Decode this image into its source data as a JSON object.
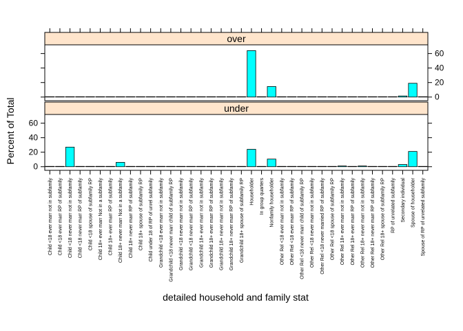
{
  "chart_data": {
    "type": "bar",
    "xlabel": "detailed household and family stat",
    "ylabel": "Percent of Total",
    "ylim": [
      -5,
      72
    ],
    "yticks": [
      0,
      20,
      40,
      60
    ],
    "colors": {
      "bar_fill": "#00ffff",
      "strip_fill": "#ffe5cc",
      "stroke": "#000000"
    },
    "categories": [
      "Child <18 ever marr not in subfamily",
      "Child <18 ever marr RP of subfamily",
      "Child <18 never marr not in subfamily",
      "Child <18 never marr RP of subfamily",
      "Child <18 spouse of subfamily RP",
      "Child 18+ ever marr Not in a subfamily",
      "Child 18+ ever marr RP of subfamily",
      "Child 18+ never marr Not in a subfamily",
      "Child 18+ never marr RP of subfamily",
      "Child 18+ spouse of subfamily RP",
      "Child under 18 of RP of unrel subfamily",
      "Grandchild <18 ever marr not in subfamily",
      "Grandchild <18 never marr child of subfamily RP",
      "Grandchild <18 never marr not in subfamily",
      "Grandchild <18 never marr RP of subfamily",
      "Grandchild 18+ ever marr not in subfamily",
      "Grandchild 18+ ever marr RP of subfamily",
      "Grandchild 18+ never marr not in subfamily",
      "Grandchild 18+ never marr RP of subfamily",
      "Grandchild 18+ spouse of subfamily RP",
      "Householder",
      "In group quarters",
      "Nonfamily householder",
      "Other Rel <18 ever marr not in subfamily",
      "Other Rel <18 ever marr RP of subfamily",
      "Other Rel <18 never marr child of subfamily RP",
      "Other Rel <18 never marr not in subfamily",
      "Other Rel <18 never married RP of subfamily",
      "Other Rel <18 spouse of subfamily RP",
      "Other Rel 18+ ever marr not in subfamily",
      "Other Rel 18+ ever marr RP of subfamily",
      "Other Rel 18+ never marr not in subfamily",
      "Other Rel 18+ never marr RP of subfamily",
      "Other Rel 18+ spouse of subfamily RP",
      "RP of unrelated subfamily",
      "Secondary individual",
      "Spouse of householder",
      "Spouse of RP of unrelated subfamily"
    ],
    "panels": [
      {
        "name": "over",
        "values": [
          0,
          0,
          0.1,
          0,
          0,
          0.1,
          0,
          0.3,
          0,
          0,
          0,
          0,
          0,
          0,
          0,
          0,
          0,
          0,
          0,
          0,
          64,
          0,
          14.5,
          0,
          0,
          0,
          0,
          0,
          0,
          0.1,
          0,
          0.1,
          0,
          0,
          0.1,
          1.5,
          19,
          0
        ]
      },
      {
        "name": "under",
        "values": [
          0,
          0,
          27,
          0,
          0,
          0.5,
          0,
          6,
          0,
          0,
          0,
          0.5,
          0.3,
          0,
          0,
          0,
          0,
          0,
          0,
          0,
          24,
          0,
          10.5,
          0,
          0,
          0,
          0.2,
          0,
          0,
          1,
          0,
          1,
          0,
          0,
          0,
          3,
          21,
          0
        ]
      }
    ]
  }
}
